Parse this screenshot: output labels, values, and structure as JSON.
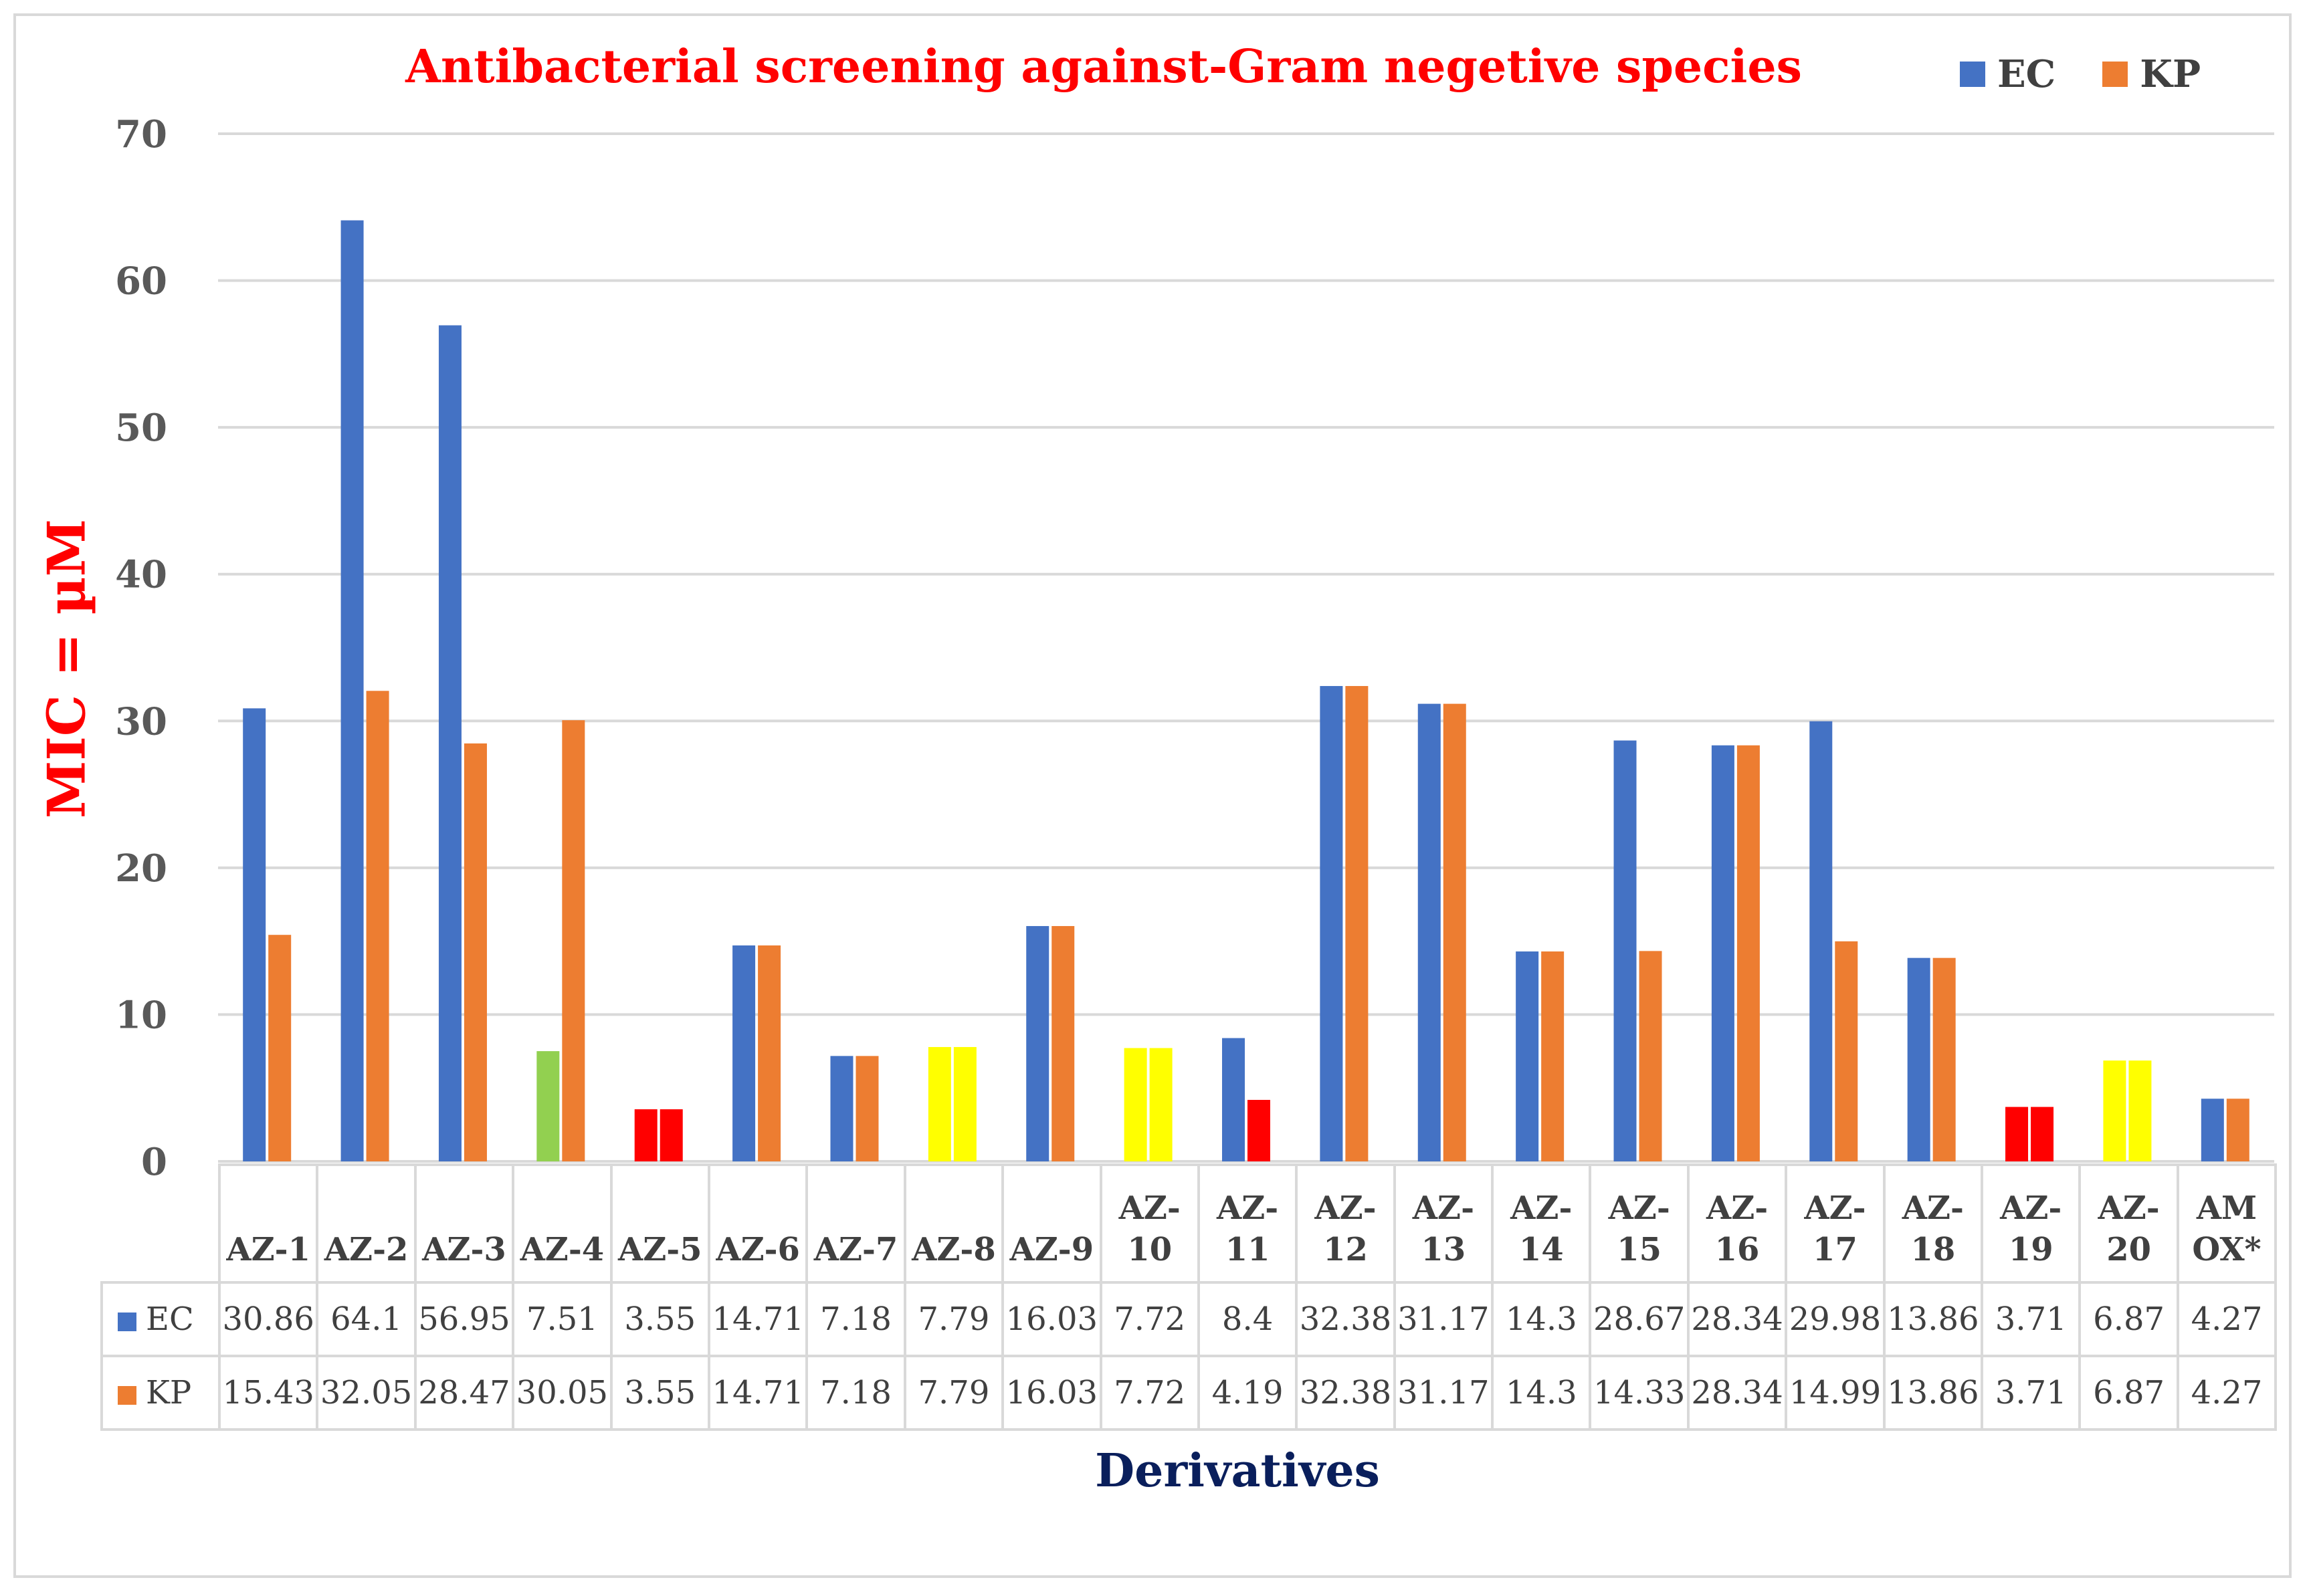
{
  "colors": {
    "EC": "#4472c4",
    "KP": "#ed7d31",
    "green": "#92d050",
    "red": "#ff0000",
    "yellow": "#ffff00",
    "grid": "#d9d9d9"
  },
  "chart_data": {
    "type": "bar",
    "title": "Antibacterial screening against-Gram negetive species",
    "xlabel": "Derivatives",
    "ylabel": "MIC = µM",
    "ylim": [
      0,
      70
    ],
    "yticks": [
      0,
      10,
      20,
      30,
      40,
      50,
      60,
      70
    ],
    "ytick_labels": [
      "0",
      "10",
      "20",
      "30",
      "40",
      "50",
      "60",
      "70"
    ],
    "grid": true,
    "legend_position": "top-right",
    "categories": [
      "AZ-1",
      "AZ-2",
      "AZ-3",
      "AZ-4",
      "AZ-5",
      "AZ-6",
      "AZ-7",
      "AZ-8",
      "AZ-9",
      "AZ-10",
      "AZ-11",
      "AZ-12",
      "AZ-13",
      "AZ-14",
      "AZ-15",
      "AZ-16",
      "AZ-17",
      "AZ-18",
      "AZ-19",
      "AZ-20",
      "AMOX*"
    ],
    "category_display": [
      [
        "AZ-1"
      ],
      [
        "AZ-2"
      ],
      [
        "AZ-3"
      ],
      [
        "AZ-4"
      ],
      [
        "AZ-5"
      ],
      [
        "AZ-6"
      ],
      [
        "AZ-7"
      ],
      [
        "AZ-8"
      ],
      [
        "AZ-9"
      ],
      [
        "AZ-",
        "10"
      ],
      [
        "AZ-",
        "11"
      ],
      [
        "AZ-",
        "12"
      ],
      [
        "AZ-",
        "13"
      ],
      [
        "AZ-",
        "14"
      ],
      [
        "AZ-",
        "15"
      ],
      [
        "AZ-",
        "16"
      ],
      [
        "AZ-",
        "17"
      ],
      [
        "AZ-",
        "18"
      ],
      [
        "AZ-",
        "19"
      ],
      [
        "AZ-",
        "20"
      ],
      [
        "AM",
        "OX*"
      ]
    ],
    "series": [
      {
        "name": "EC",
        "values": [
          30.86,
          64.1,
          56.95,
          7.51,
          3.55,
          14.71,
          7.18,
          7.79,
          16.03,
          7.72,
          8.4,
          32.38,
          31.17,
          14.3,
          28.67,
          28.34,
          29.98,
          13.86,
          3.71,
          6.87,
          4.27
        ],
        "value_labels": [
          "30.86",
          "64.1",
          "56.95",
          "7.51",
          "3.55",
          "14.71",
          "7.18",
          "7.79",
          "16.03",
          "7.72",
          "8.4",
          "32.38",
          "31.17",
          "14.3",
          "28.67",
          "28.34",
          "29.98",
          "13.86",
          "3.71",
          "6.87",
          "4.27"
        ],
        "bar_colors": [
          "#4472c4",
          "#4472c4",
          "#4472c4",
          "#92d050",
          "#ff0000",
          "#4472c4",
          "#4472c4",
          "#ffff00",
          "#4472c4",
          "#ffff00",
          "#4472c4",
          "#4472c4",
          "#4472c4",
          "#4472c4",
          "#4472c4",
          "#4472c4",
          "#4472c4",
          "#4472c4",
          "#ff0000",
          "#ffff00",
          "#4472c4"
        ]
      },
      {
        "name": "KP",
        "values": [
          15.43,
          32.05,
          28.47,
          30.05,
          3.55,
          14.71,
          7.18,
          7.79,
          16.03,
          7.72,
          4.19,
          32.38,
          31.17,
          14.3,
          14.33,
          28.34,
          14.99,
          13.86,
          3.71,
          6.87,
          4.27
        ],
        "value_labels": [
          "15.43",
          "32.05",
          "28.47",
          "30.05",
          "3.55",
          "14.71",
          "7.18",
          "7.79",
          "16.03",
          "7.72",
          "4.19",
          "32.38",
          "31.17",
          "14.3",
          "14.33",
          "28.34",
          "14.99",
          "13.86",
          "3.71",
          "6.87",
          "4.27"
        ],
        "bar_colors": [
          "#ed7d31",
          "#ed7d31",
          "#ed7d31",
          "#ed7d31",
          "#ff0000",
          "#ed7d31",
          "#ed7d31",
          "#ffff00",
          "#ed7d31",
          "#ffff00",
          "#ff0000",
          "#ed7d31",
          "#ed7d31",
          "#ed7d31",
          "#ed7d31",
          "#ed7d31",
          "#ed7d31",
          "#ed7d31",
          "#ff0000",
          "#ffff00",
          "#ed7d31"
        ]
      }
    ]
  }
}
